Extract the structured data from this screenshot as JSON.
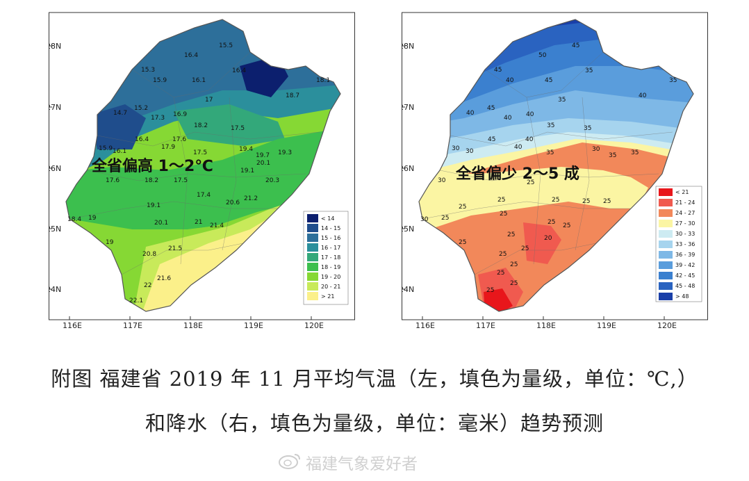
{
  "left_map": {
    "headline": "全省偏高 1～2℃",
    "lat_labels": [
      "28N",
      "27N",
      "26N",
      "25N",
      "24N"
    ],
    "lon_labels": [
      "116E",
      "117E",
      "118E",
      "119E",
      "120E"
    ],
    "legend": [
      {
        "label": "< 14",
        "color": "#0c1f6e"
      },
      {
        "label": "14 - 15",
        "color": "#1f4d8c"
      },
      {
        "label": "15 - 16",
        "color": "#2d6f9a"
      },
      {
        "label": "16 - 17",
        "color": "#2b8f9c"
      },
      {
        "label": "17 - 18",
        "color": "#33a87a"
      },
      {
        "label": "18 - 19",
        "color": "#3cbf4e"
      },
      {
        "label": "19 - 20",
        "color": "#86d834"
      },
      {
        "label": "20 - 21",
        "color": "#c8ea5a"
      },
      {
        "label": "> 21",
        "color": "#fbf08a"
      }
    ],
    "station_values": [
      "15.5",
      "16.4",
      "15.3",
      "15.9",
      "16.1",
      "16.4",
      "14.7",
      "15.2",
      "17.3",
      "16.9",
      "17",
      "18.2",
      "18.7",
      "18.1",
      "16.4",
      "17.6",
      "17.9",
      "17.5",
      "17.5",
      "19.4",
      "19.7",
      "19.3",
      "15.9",
      "16.1",
      "17.6",
      "18.2",
      "17.5",
      "19.1",
      "20.1",
      "20.3",
      "18.4",
      "19",
      "19.1",
      "17.4",
      "20.6",
      "21.2",
      "19",
      "20.1",
      "21",
      "21.4",
      "20.8",
      "21.5",
      "21.6",
      "22",
      "22.1"
    ]
  },
  "right_map": {
    "headline": "全省偏少 2～5 成",
    "lat_labels": [
      "28N",
      "27N",
      "26N",
      "25N",
      "24N"
    ],
    "lon_labels": [
      "116E",
      "117E",
      "118E",
      "119E",
      "120E"
    ],
    "legend": [
      {
        "label": "< 21",
        "color": "#e8161b"
      },
      {
        "label": "21 - 24",
        "color": "#f05a4f"
      },
      {
        "label": "24 - 27",
        "color": "#f2885a"
      },
      {
        "label": "27 - 30",
        "color": "#fbf5a3"
      },
      {
        "label": "30 - 33",
        "color": "#cdebf2"
      },
      {
        "label": "33 - 36",
        "color": "#a6d4ee"
      },
      {
        "label": "36 - 39",
        "color": "#7eb8e6"
      },
      {
        "label": "39 - 42",
        "color": "#5a9ddc"
      },
      {
        "label": "42 - 45",
        "color": "#3b80cf"
      },
      {
        "label": "45 - 48",
        "color": "#2a63c0"
      },
      {
        "label": "> 48",
        "color": "#1a3fa8"
      }
    ],
    "station_values": [
      "45",
      "50",
      "45",
      "40",
      "45",
      "35",
      "40",
      "45",
      "40",
      "40",
      "35",
      "35",
      "40",
      "35",
      "45",
      "40",
      "40",
      "35",
      "35",
      "30",
      "35",
      "35",
      "30",
      "30",
      "30",
      "30",
      "25",
      "25",
      "25",
      "25",
      "25",
      "25",
      "25",
      "25",
      "25",
      "25",
      "25",
      "20",
      "25",
      "25",
      "25",
      "25",
      "25",
      "25",
      "25"
    ]
  },
  "caption": {
    "line1": "附图  福建省 2019 年 11 月平均气温（左，填色为量级，单位：℃,）",
    "line2": "和降水（右，填色为量级，单位：毫米）趋势预测"
  },
  "watermark": "福建气象爱好者"
}
